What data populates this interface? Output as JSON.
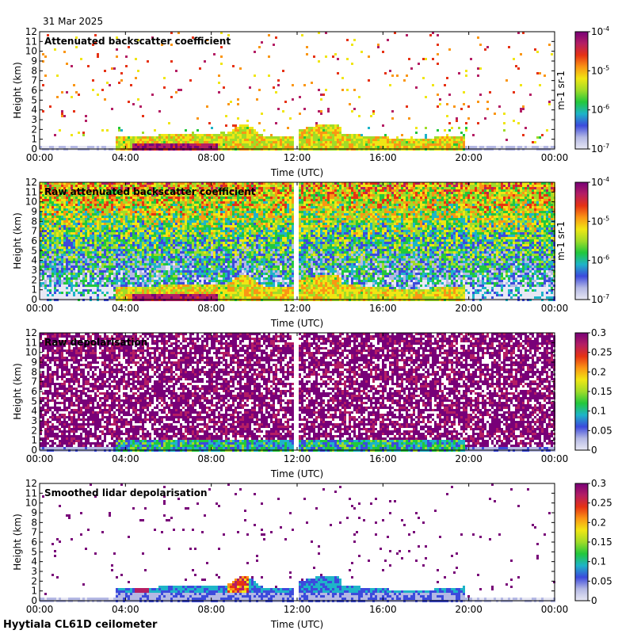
{
  "date": "31 Mar 2025",
  "footer": "Hyytiala CL61D ceilometer",
  "x_tick_labels": [
    "00:00",
    "04:00",
    "08:00",
    "12:00",
    "16:00",
    "20:00",
    "00:00"
  ],
  "x_label": "Time (UTC)",
  "y_label": "Height (km)",
  "y_tick_labels": [
    "0",
    "1",
    "2",
    "3",
    "4",
    "5",
    "6",
    "7",
    "8",
    "9",
    "10",
    "11",
    "12"
  ],
  "colors": {
    "ramp": [
      "#e8e8f4",
      "#b4b8e4",
      "#3c4adc",
      "#1eb4c8",
      "#22c83c",
      "#a0dc28",
      "#f0e614",
      "#fa9614",
      "#e63214",
      "#b41e64",
      "#780078"
    ],
    "missing": "#ffffff"
  },
  "chart_data": [
    {
      "type": "heatmap",
      "id": "attenuated-backscatter",
      "title": "Attenuated backscatter coefficient",
      "xlabel": "Time (UTC)",
      "ylabel": "Height (km)",
      "xlim": [
        0,
        24
      ],
      "ylim": [
        0,
        12
      ],
      "colorbar": {
        "scale": "log",
        "range": [
          1e-07,
          0.0001
        ],
        "tick_labels": [
          "10^-7",
          "10^-6",
          "10^-5",
          "10^-4"
        ],
        "units_label": "m^-1 sr^-1"
      },
      "missing_interval_hours": [
        11.85,
        12.0
      ],
      "features": "Cloud/aerosol layer 0.5-2 km from ~03:30-11:30 with strong signal near 0.6 km 04:30-08:00; convective plumes to ~3 km around 09:00-10:00; layer ~2.5-3 km near 12:00-14:00; boundary layer 1-1.5 km 12:00-19:30; sparse high-level noise"
    },
    {
      "type": "heatmap",
      "id": "raw-backscatter",
      "title": "Raw attenuated backscatter coefficient",
      "xlabel": "Time (UTC)",
      "ylabel": "Height (km)",
      "xlim": [
        0,
        24
      ],
      "ylim": [
        0,
        12
      ],
      "colorbar": {
        "scale": "log",
        "range": [
          1e-07,
          0.0001
        ],
        "tick_labels": [
          "10^-7",
          "10^-6",
          "10^-5",
          "10^-4"
        ],
        "units_label": "m^-1 sr^-1"
      },
      "missing_interval_hours": [
        11.85,
        12.0
      ],
      "features": "Noise background increasing with height; same low layer structure as above"
    },
    {
      "type": "heatmap",
      "id": "raw-depolarisation",
      "title": "Raw depolarisation",
      "xlabel": "Time (UTC)",
      "ylabel": "Height (km)",
      "xlim": [
        0,
        24
      ],
      "ylim": [
        0,
        12
      ],
      "colorbar": {
        "scale": "linear",
        "range": [
          0,
          0.3
        ],
        "tick_labels": [
          "0",
          "0.05",
          "0.1",
          "0.15",
          "0.2",
          "0.25",
          "0.3"
        ]
      },
      "missing_interval_hours": [
        11.85,
        12.0
      ],
      "features": "Mostly noisy high values aloft; low depolarisation layer below 1 km"
    },
    {
      "type": "heatmap",
      "id": "smoothed-depolarisation",
      "title": "Smoothed lidar depolarisation",
      "xlabel": "Time (UTC)",
      "ylabel": "Height (km)",
      "xlim": [
        0,
        24
      ],
      "ylim": [
        0,
        12
      ],
      "colorbar": {
        "scale": "linear",
        "range": [
          0,
          0.3
        ],
        "tick_labels": [
          "0",
          "0.05",
          "0.1",
          "0.15",
          "0.2",
          "0.25",
          "0.3"
        ]
      },
      "missing_interval_hours": [
        11.85,
        12.0
      ],
      "features": "Low depolarisation within boundary layer; higher values in plumes near 04:30 and 09:00"
    }
  ]
}
